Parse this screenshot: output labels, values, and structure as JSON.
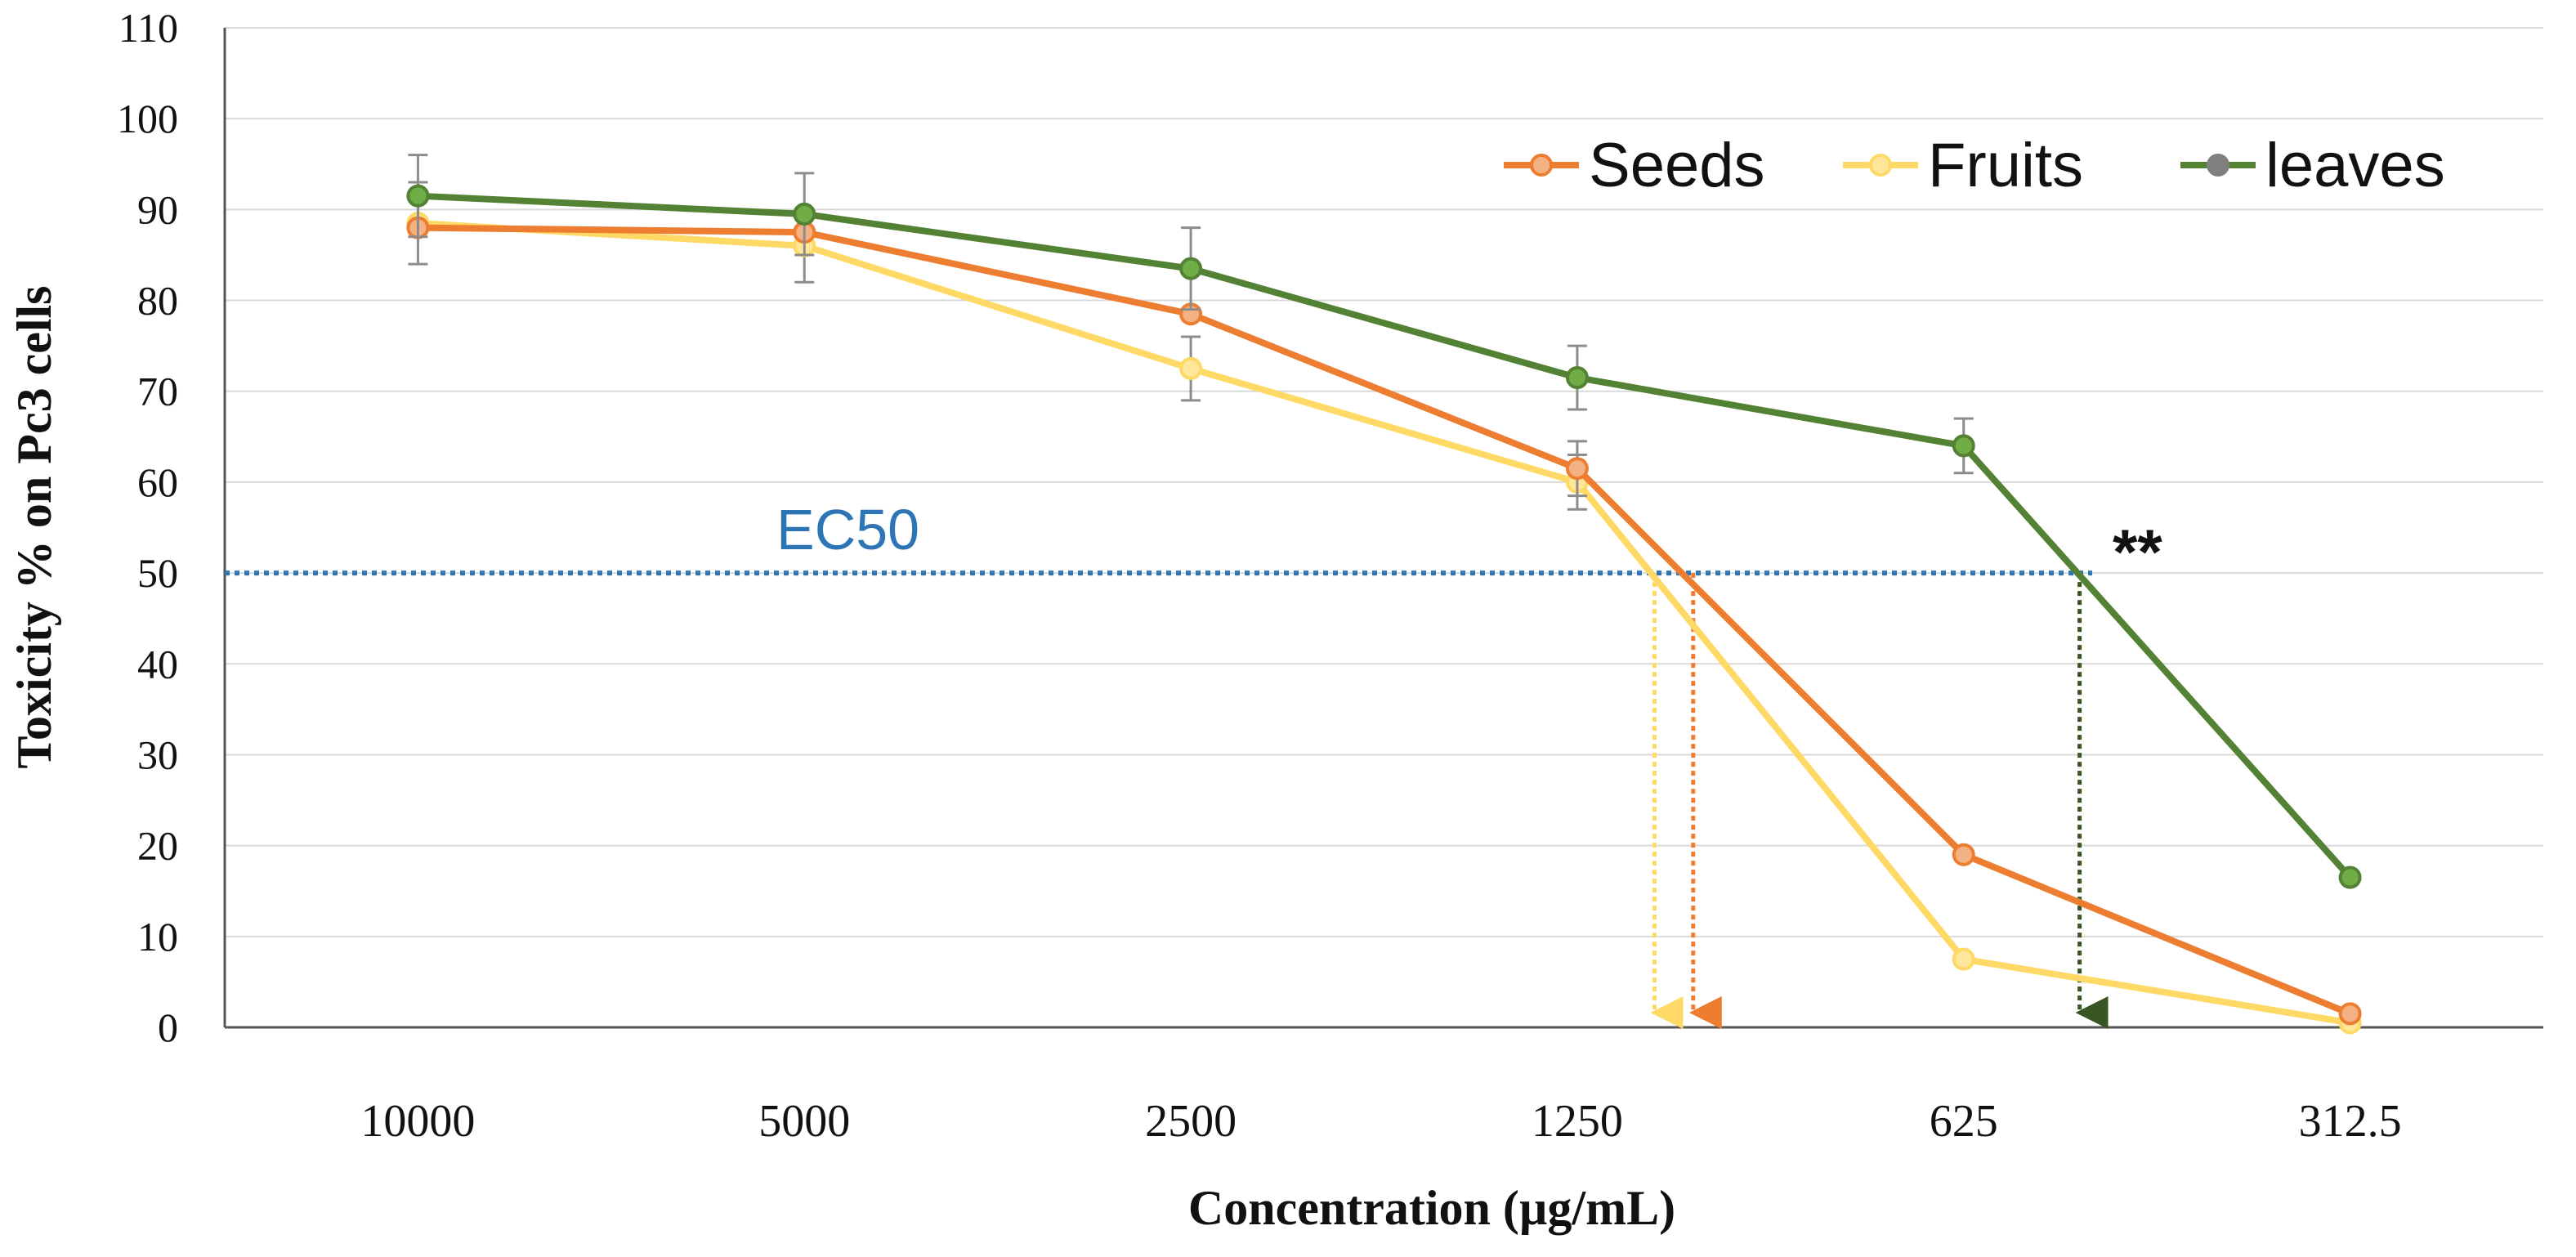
{
  "chart_data": {
    "type": "line",
    "title": "",
    "xlabel": "Concentration (µg/mL)",
    "ylabel": "Toxicity % on Pc3 cells",
    "categories": [
      "10000",
      "5000",
      "2500",
      "1250",
      "625",
      "312.5"
    ],
    "ylim": [
      0,
      110
    ],
    "yticks": [
      0,
      10,
      20,
      30,
      40,
      50,
      60,
      70,
      80,
      90,
      100,
      110
    ],
    "grid": true,
    "legend_position": "top-right",
    "series": [
      {
        "name": "Seeds",
        "color": "#ED7D31",
        "marker_fill": "#F4B183",
        "values": [
          88,
          87.5,
          78.5,
          61.5,
          19,
          1.5
        ],
        "errors": [
          null,
          null,
          null,
          3,
          null,
          null
        ],
        "ec50_category_position": 3.3
      },
      {
        "name": "Fruits",
        "color": "#FFD966",
        "marker_fill": "#FFE699",
        "values": [
          88.5,
          86,
          72.5,
          60,
          7.5,
          0.5
        ],
        "errors": [
          4.5,
          4,
          3.5,
          3,
          null,
          null
        ],
        "ec50_category_position": 3.2
      },
      {
        "name": "leaves",
        "color": "#548235",
        "marker_fill": "#70AD47",
        "values": [
          91.5,
          89.5,
          83.5,
          71.5,
          64,
          16.5
        ],
        "errors": [
          4.5,
          4.5,
          4.5,
          3.5,
          3,
          null
        ],
        "ec50_category_position": 4.3
      }
    ],
    "annotations": {
      "ec50_label": "EC50",
      "ec50_value": 50,
      "ec50_color": "#2E75B6",
      "significance": "**"
    }
  }
}
